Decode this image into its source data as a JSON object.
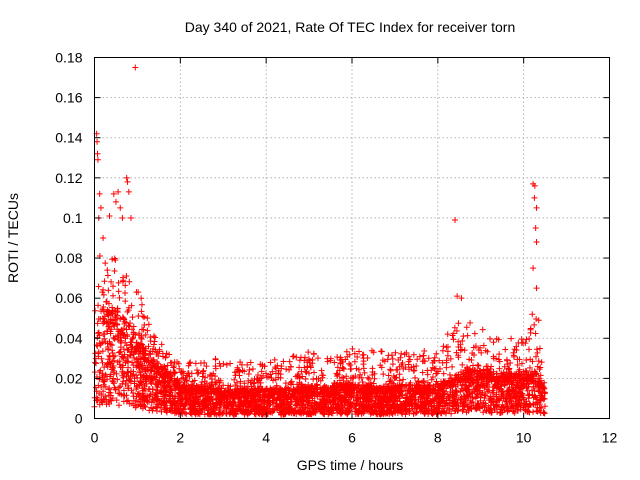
{
  "chart_data": {
    "type": "scatter",
    "title": "Day 340 of 2021, Rate Of TEC Index for receiver torn",
    "xlabel": "GPS time / hours",
    "ylabel": "ROTI / TECUs",
    "xlim": [
      0,
      12
    ],
    "ylim": [
      0,
      0.18
    ],
    "xticks": [
      0,
      2,
      4,
      6,
      8,
      10,
      12
    ],
    "yticks": [
      0,
      0.02,
      0.04,
      0.06,
      0.08,
      0.1,
      0.12,
      0.14,
      0.16,
      0.18
    ],
    "xtick_labels": [
      "0",
      "2",
      "4",
      "6",
      "8",
      "10",
      "12"
    ],
    "ytick_labels": [
      "0",
      "0.02",
      "0.04",
      "0.06",
      "0.08",
      "0.1",
      "0.12",
      "0.14",
      "0.16",
      "0.18"
    ],
    "grid": true,
    "marker": "plus",
    "series_color": "#ff0000",
    "x_data_range": [
      0,
      10.5
    ],
    "envelope": {
      "x": [
        0.0,
        0.1,
        0.3,
        0.5,
        0.7,
        0.9,
        1.1,
        1.3,
        1.5,
        1.8,
        2.0,
        2.5,
        3.0,
        3.5,
        4.0,
        4.5,
        5.0,
        5.5,
        6.0,
        6.5,
        7.0,
        7.5,
        8.0,
        8.3,
        8.6,
        9.0,
        9.5,
        10.0,
        10.3,
        10.5
      ],
      "y_typical": [
        0.025,
        0.04,
        0.045,
        0.045,
        0.04,
        0.035,
        0.03,
        0.026,
        0.022,
        0.018,
        0.014,
        0.013,
        0.012,
        0.012,
        0.012,
        0.012,
        0.013,
        0.013,
        0.014,
        0.013,
        0.013,
        0.014,
        0.014,
        0.016,
        0.02,
        0.02,
        0.018,
        0.018,
        0.02,
        0.012
      ],
      "y_upper": [
        0.05,
        0.09,
        0.08,
        0.08,
        0.075,
        0.068,
        0.06,
        0.045,
        0.04,
        0.03,
        0.028,
        0.03,
        0.03,
        0.028,
        0.03,
        0.03,
        0.034,
        0.03,
        0.035,
        0.034,
        0.033,
        0.035,
        0.033,
        0.045,
        0.05,
        0.045,
        0.04,
        0.04,
        0.05,
        0.016
      ]
    },
    "notable_points": [
      {
        "x": 0.05,
        "y": 0.142
      },
      {
        "x": 0.06,
        "y": 0.138
      },
      {
        "x": 0.07,
        "y": 0.132
      },
      {
        "x": 0.08,
        "y": 0.129
      },
      {
        "x": 0.12,
        "y": 0.112
      },
      {
        "x": 0.15,
        "y": 0.105
      },
      {
        "x": 0.1,
        "y": 0.1
      },
      {
        "x": 0.2,
        "y": 0.09
      },
      {
        "x": 0.35,
        "y": 0.101
      },
      {
        "x": 0.45,
        "y": 0.112
      },
      {
        "x": 0.5,
        "y": 0.108
      },
      {
        "x": 0.55,
        "y": 0.113
      },
      {
        "x": 0.6,
        "y": 0.105
      },
      {
        "x": 0.65,
        "y": 0.1
      },
      {
        "x": 0.75,
        "y": 0.12
      },
      {
        "x": 0.77,
        "y": 0.118
      },
      {
        "x": 0.8,
        "y": 0.113
      },
      {
        "x": 0.85,
        "y": 0.1
      },
      {
        "x": 0.95,
        "y": 0.175
      },
      {
        "x": 8.4,
        "y": 0.099
      },
      {
        "x": 8.45,
        "y": 0.061
      },
      {
        "x": 8.55,
        "y": 0.06
      },
      {
        "x": 10.22,
        "y": 0.117
      },
      {
        "x": 10.26,
        "y": 0.116
      },
      {
        "x": 10.25,
        "y": 0.11
      },
      {
        "x": 10.3,
        "y": 0.105
      },
      {
        "x": 10.28,
        "y": 0.095
      },
      {
        "x": 10.3,
        "y": 0.088
      },
      {
        "x": 10.22,
        "y": 0.075
      },
      {
        "x": 10.3,
        "y": 0.065
      },
      {
        "x": 10.2,
        "y": 0.052
      },
      {
        "x": 10.35,
        "y": 0.049
      }
    ]
  }
}
